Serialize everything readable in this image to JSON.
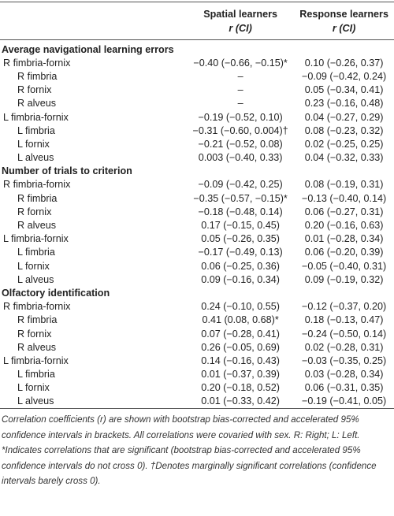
{
  "header": {
    "columns": [
      {
        "name": "Spatial learners",
        "measure": "r (CI)"
      },
      {
        "name": "Response learners",
        "measure": "r (CI)"
      }
    ]
  },
  "sections": [
    {
      "title": "Average navigational learning errors",
      "groups": [
        {
          "label": "R fimbria-fornix",
          "values": [
            "−0.40 (−0.66, −0.15)*",
            "0.10 (−0.26, 0.37)"
          ],
          "subrows": [
            {
              "label": "R fimbria",
              "values": [
                "–",
                "−0.09 (−0.42, 0.24)"
              ]
            },
            {
              "label": "R fornix",
              "values": [
                "–",
                "0.05 (−0.34, 0.41)"
              ]
            },
            {
              "label": "R alveus",
              "values": [
                "–",
                "0.23 (−0.16, 0.48)"
              ]
            }
          ]
        },
        {
          "label": "L fimbria-fornix",
          "values": [
            "−0.19 (−0.52, 0.10)",
            "0.04 (−0.27, 0.29)"
          ],
          "subrows": [
            {
              "label": "L fimbria",
              "values": [
                "−0.31 (−0.60, 0.004)†",
                "0.08 (−0.23, 0.32)"
              ]
            },
            {
              "label": "L fornix",
              "values": [
                "−0.21 (−0.52, 0.08)",
                "0.02 (−0.25, 0.25)"
              ]
            },
            {
              "label": "L alveus",
              "values": [
                "0.003 (−0.40, 0.33)",
                "0.04 (−0.32, 0.33)"
              ]
            }
          ]
        }
      ]
    },
    {
      "title": "Number of trials to criterion",
      "groups": [
        {
          "label": "R fimbria-fornix",
          "values": [
            "−0.09 (−0.42, 0.25)",
            "0.08 (−0.19, 0.31)"
          ],
          "subrows": [
            {
              "label": "R fimbria",
              "values": [
                "−0.35 (−0.57, −0.15)*",
                "−0.13 (−0.40, 0.14)"
              ]
            },
            {
              "label": "R fornix",
              "values": [
                "−0.18 (−0.48, 0.14)",
                "0.06 (−0.27, 0.31)"
              ]
            },
            {
              "label": "R alveus",
              "values": [
                "0.17 (−0.15, 0.45)",
                "0.20 (−0.16, 0.63)"
              ]
            }
          ]
        },
        {
          "label": "L fimbria-fornix",
          "values": [
            "0.05 (−0.26, 0.35)",
            "0.01 (−0.28, 0.34)"
          ],
          "subrows": [
            {
              "label": "L fimbria",
              "values": [
                "−0.17 (−0.49, 0.13)",
                "0.06 (−0.20, 0.39)"
              ]
            },
            {
              "label": "L fornix",
              "values": [
                "0.06 (−0.25, 0.36)",
                "−0.05 (−0.40, 0.31)"
              ]
            },
            {
              "label": "L alveus",
              "values": [
                "0.09 (−0.16, 0.34)",
                "0.09 (−0.19, 0.32)"
              ]
            }
          ]
        }
      ]
    },
    {
      "title": "Olfactory identification",
      "groups": [
        {
          "label": "R fimbria-fornix",
          "values": [
            "0.24 (−0.10, 0.55)",
            "−0.12 (−0.37, 0.20)"
          ],
          "subrows": [
            {
              "label": "R fimbria",
              "values": [
                "0.41 (0.08, 0.68)*",
                "0.18 (−0.13, 0.47)"
              ]
            },
            {
              "label": "R fornix",
              "values": [
                "0.07 (−0.28, 0.41)",
                "−0.24 (−0.50, 0.14)"
              ]
            },
            {
              "label": "R alveus",
              "values": [
                "0.26 (−0.05, 0.69)",
                "0.02 (−0.28, 0.31)"
              ]
            }
          ]
        },
        {
          "label": "L fimbria-fornix",
          "values": [
            "0.14 (−0.16, 0.43)",
            "−0.03 (−0.35, 0.25)"
          ],
          "subrows": [
            {
              "label": "L fimbria",
              "values": [
                "0.01 (−0.37, 0.39)",
                "0.03 (−0.28, 0.34)"
              ]
            },
            {
              "label": "L fornix",
              "values": [
                "0.20 (−0.18, 0.52)",
                "0.06 (−0.31, 0.35)"
              ]
            },
            {
              "label": "L alveus",
              "values": [
                "0.01 (−0.33, 0.42)",
                "−0.19 (−0.41, 0.05)"
              ]
            }
          ]
        }
      ]
    }
  ],
  "footnote": "Correlation coefficients (r) are shown with bootstrap bias-corrected and accelerated 95% confidence intervals in brackets. All correlations were covaried with sex. R: Right; L: Left. *Indicates correlations that are significant (bootstrap bias-corrected and accelerated 95% confidence intervals do not cross 0). †Denotes marginally significant correlations (confidence intervals barely cross 0)."
}
